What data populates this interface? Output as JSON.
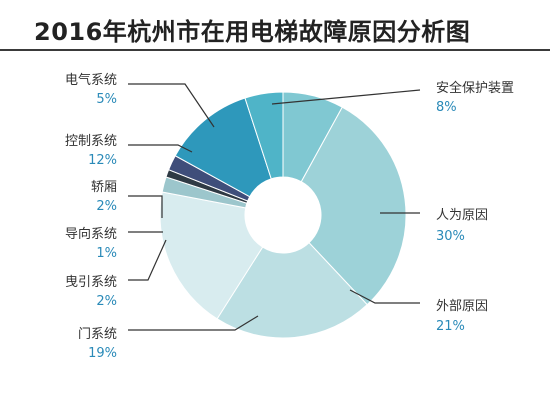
{
  "chart_data": {
    "type": "pie",
    "title": "2016年杭州市在用电梯故障原因分析图",
    "donut": true,
    "slices": [
      {
        "label": "安全保护装置",
        "value_text": "8%",
        "value": 8,
        "color": "#80c8d2"
      },
      {
        "label": "人为原因",
        "value_text": "30%",
        "value": 30,
        "color": "#9dd2d8"
      },
      {
        "label": "外部原因",
        "value_text": "21%",
        "value": 21,
        "color": "#bcdfe3"
      },
      {
        "label": "门系统",
        "value_text": "19%",
        "value": 19,
        "color": "#d8ecef"
      },
      {
        "label": "曳引系统",
        "value_text": "2%",
        "value": 2,
        "color": "#9cc6cc"
      },
      {
        "label": "导向系统",
        "value_text": "1%",
        "value": 1,
        "color": "#2f3a44"
      },
      {
        "label": "轿厢",
        "value_text": "2%",
        "value": 2,
        "color": "#3f4e7a"
      },
      {
        "label": "控制系统",
        "value_text": "12%",
        "value": 12,
        "color": "#2e98bb"
      },
      {
        "label": "电气系统",
        "value_text": "5%",
        "value": 5,
        "color": "#4fb4c8"
      }
    ]
  }
}
